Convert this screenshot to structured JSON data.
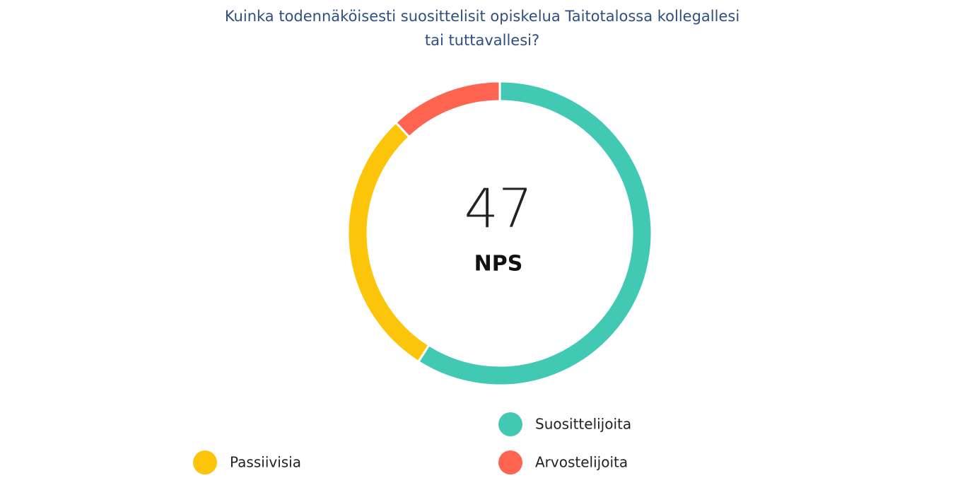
{
  "chart_data": {
    "type": "donut",
    "title": "Kuinka todennäköisesti suosittelisit opiskelua Taitotalossa kollegallesi tai tuttavallesi?",
    "center_value": 47,
    "center_label": "NPS",
    "series": [
      {
        "name": "Suosittelijoita",
        "color": "#41c9b4",
        "values": [
          59
        ]
      },
      {
        "name": "Passiivisia",
        "color": "#fdc50a",
        "values": [
          29
        ]
      },
      {
        "name": "Arvostelijoita",
        "color": "#fe6450",
        "values": [
          12
        ]
      }
    ]
  }
}
